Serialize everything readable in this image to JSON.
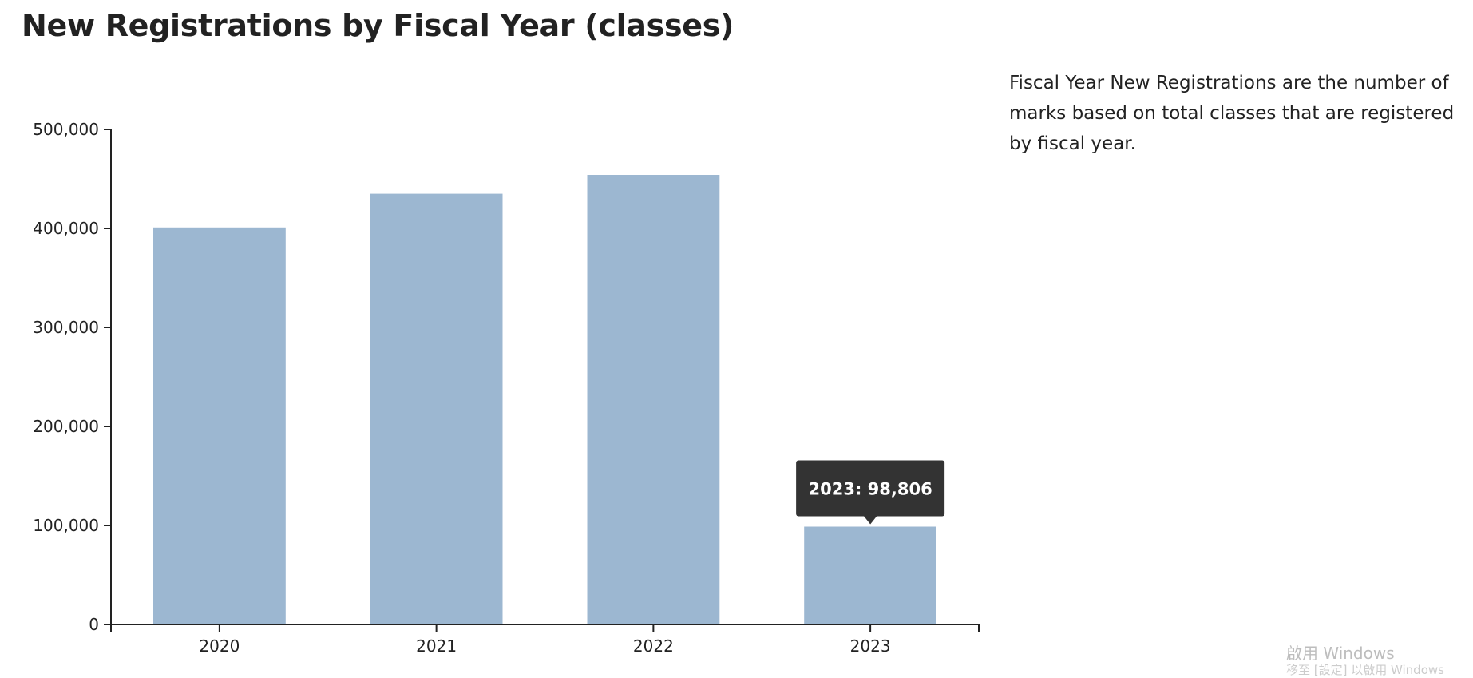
{
  "page": {
    "title": "New Registrations by Fiscal Year (classes)",
    "description": "Fiscal Year New Registrations are the number of marks based on total classes that are registered by fiscal year.",
    "watermark": "啟用 Windows",
    "watermark_sub": "移至 [設定] 以啟用 Windows"
  },
  "colors": {
    "bar": "#9cb7d1",
    "axis": "#222222",
    "tooltip_bg": "#333333",
    "tooltip_text": "#ffffff"
  },
  "tooltip": {
    "text": "2023: 98,806",
    "category": "2023"
  },
  "chart_data": {
    "type": "bar",
    "title": "New Registrations by Fiscal Year (classes)",
    "categories": [
      "2020",
      "2021",
      "2022",
      "2023"
    ],
    "values": [
      401000,
      435000,
      454000,
      98806
    ],
    "xlabel": "",
    "ylabel": "",
    "ylim": [
      0,
      500000
    ],
    "yticks": [
      0,
      100000,
      200000,
      300000,
      400000,
      500000
    ],
    "ytick_labels": [
      "0",
      "100,000",
      "200,000",
      "300,000",
      "400,000",
      "500,000"
    ],
    "grid": false,
    "legend": "none"
  }
}
